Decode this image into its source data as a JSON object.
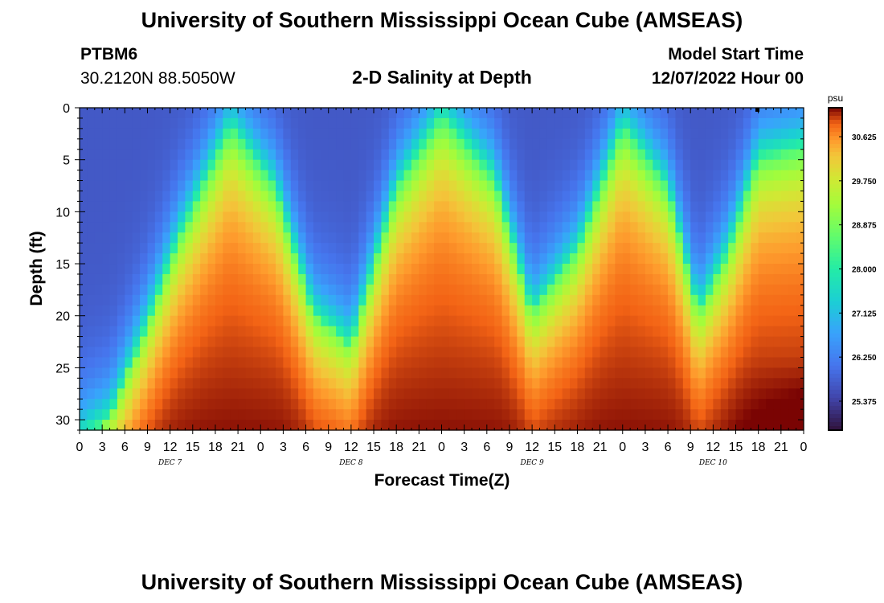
{
  "header": {
    "title": "University of Southern Mississippi Ocean Cube (AMSEAS)",
    "station_id": "PTBM6",
    "coords": "30.2120N  88.5050W",
    "plot_title": "2-D Salinity at Depth",
    "start_label": "Model Start Time",
    "start_value": "12/07/2022 Hour 00"
  },
  "footer": {
    "title": "University of Southern Mississippi Ocean Cube (AMSEAS)"
  },
  "chart_data": {
    "type": "heatmap",
    "title": "2-D Salinity at Depth",
    "xlabel": "Forecast Time(Z)",
    "ylabel": "Depth (ft)",
    "x_range_hours": [
      0,
      96
    ],
    "ylim": [
      0,
      31
    ],
    "y_ticks": [
      0,
      5,
      10,
      15,
      20,
      25,
      30
    ],
    "x_tick_labels": [
      "0",
      "3",
      "6",
      "9",
      "12",
      "15",
      "18",
      "21",
      "0",
      "3",
      "6",
      "9",
      "12",
      "15",
      "18",
      "21",
      "0",
      "3",
      "6",
      "9",
      "12",
      "15",
      "18",
      "21",
      "0",
      "3",
      "6",
      "9",
      "12",
      "15",
      "18",
      "21",
      "0"
    ],
    "day_labels": [
      {
        "label": "DEC 7",
        "hour": 12
      },
      {
        "label": "DEC 8",
        "hour": 36
      },
      {
        "label": "DEC 9",
        "hour": 60
      },
      {
        "label": "DEC 10",
        "hour": 84
      }
    ],
    "colorbar": {
      "unit": "psu",
      "min": 24.8,
      "max": 31.2,
      "ticks": [
        30.625,
        29.75,
        28.875,
        28.0,
        27.125,
        26.25,
        25.375
      ],
      "tick_labels": [
        "30.625",
        "29.750",
        "28.875",
        "28.000",
        "27.125",
        "26.250",
        "25.375"
      ]
    },
    "isohaline_depth_profile": {
      "hours": [
        0,
        4,
        9,
        13,
        20,
        26,
        31,
        36,
        42,
        48,
        55,
        60,
        66,
        72,
        78,
        82,
        86,
        90,
        96
      ],
      "depth_ft": [
        32,
        30,
        21,
        13,
        2,
        8,
        20,
        23,
        8,
        1,
        7,
        20,
        14,
        2,
        8,
        20,
        14,
        5,
        4
      ]
    }
  }
}
